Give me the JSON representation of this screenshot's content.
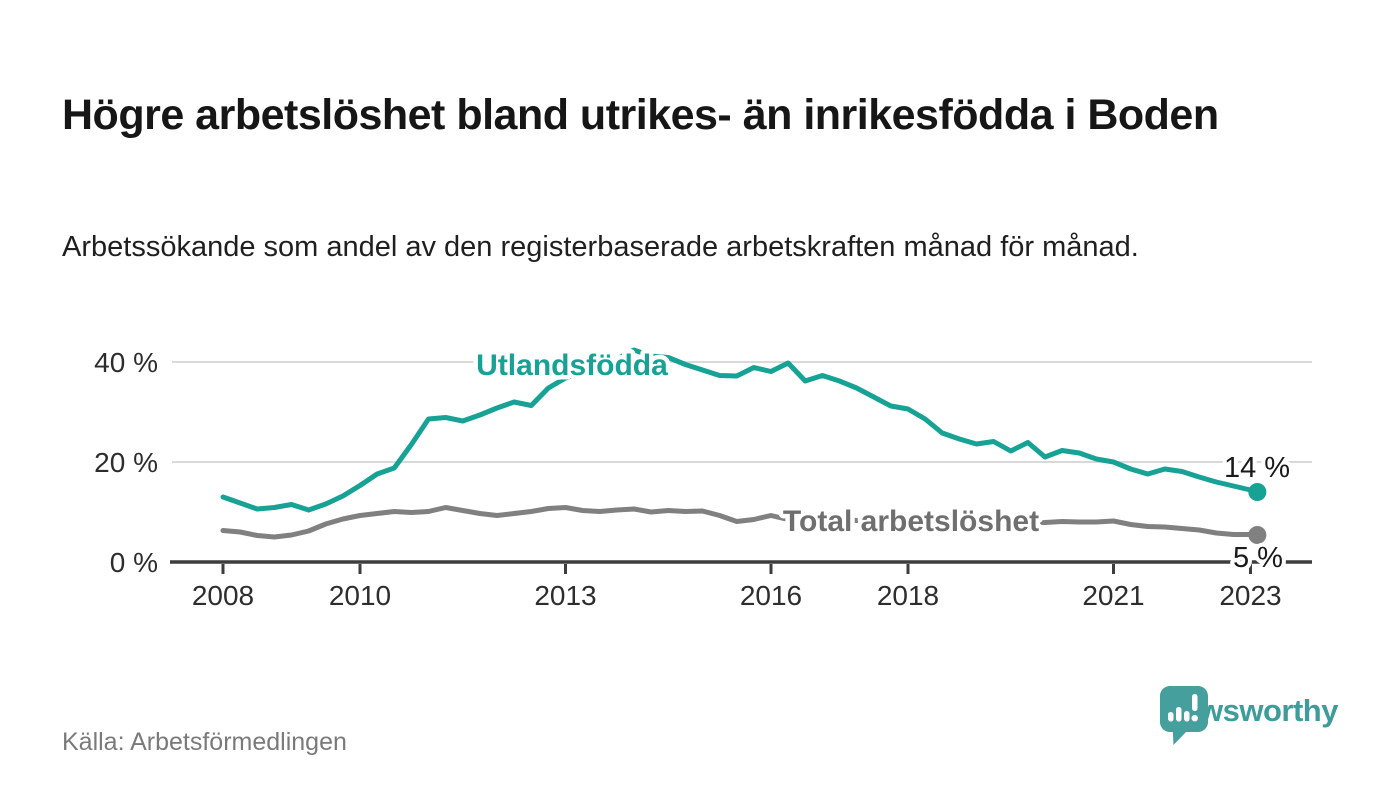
{
  "header": {
    "title": "Högre arbetslöshet bland utrikes- än inrikesfödda i Boden",
    "subtitle": "Arbetssökande som andel av den registerbaserade arbetskraften månad för månad."
  },
  "footer": {
    "source": "Källa: Arbetsförmedlingen",
    "brand": "Newsworthy"
  },
  "colors": {
    "teal": "#16a294",
    "gray": "#808080",
    "axis": "#3d3d3d",
    "gridline": "#d9d9d9",
    "brand_teal": "#3e9d9b"
  },
  "chart_data": {
    "type": "line",
    "title": "Högre arbetslöshet bland utrikes- än inrikesfödda i Boden",
    "subtitle": "Arbetssökande som andel av den registerbaserade arbetskraften månad för månad.",
    "source": "Källa: Arbetsförmedlingen",
    "y_unit": "%",
    "grid": "horizontal-only",
    "y_axis": {
      "range": [
        0,
        44
      ],
      "gridlines": [
        20,
        40
      ],
      "ticks": [
        {
          "value": 0,
          "label": "0 %"
        },
        {
          "value": 20,
          "label": "20 %"
        },
        {
          "value": 40,
          "label": "40 %"
        }
      ]
    },
    "x_axis": {
      "range": [
        2008,
        2023.4
      ],
      "ticks": [
        {
          "year": 2008,
          "label": "2008"
        },
        {
          "year": 2010,
          "label": "2010"
        },
        {
          "year": 2013,
          "label": "2013"
        },
        {
          "year": 2016,
          "label": "2016"
        },
        {
          "year": 2018,
          "label": "2018"
        },
        {
          "year": 2021,
          "label": "2021"
        },
        {
          "year": 2023,
          "label": "2023"
        }
      ]
    },
    "x": [
      2008,
      2008.25,
      2008.5,
      2008.75,
      2009,
      2009.25,
      2009.5,
      2009.75,
      2010,
      2010.25,
      2010.5,
      2010.75,
      2011,
      2011.25,
      2011.5,
      2011.75,
      2012,
      2012.25,
      2012.5,
      2012.75,
      2013,
      2013.25,
      2013.5,
      2013.75,
      2014,
      2014.25,
      2014.5,
      2014.75,
      2015,
      2015.25,
      2015.5,
      2015.75,
      2016,
      2016.25,
      2016.5,
      2016.75,
      2017,
      2017.25,
      2017.5,
      2017.75,
      2018,
      2018.25,
      2018.5,
      2018.75,
      2019,
      2019.25,
      2019.5,
      2019.75,
      2020,
      2020.25,
      2020.5,
      2020.75,
      2021,
      2021.25,
      2021.5,
      2021.75,
      2022,
      2022.25,
      2022.5,
      2022.75,
      2023,
      2023.1
    ],
    "series": [
      {
        "name": "Utlandsfödda",
        "color": "#16a294",
        "end_label": "14 %",
        "end_value": 14,
        "values": [
          13.0,
          11.8,
          10.6,
          10.9,
          11.5,
          10.4,
          11.6,
          13.2,
          15.3,
          17.6,
          18.8,
          23.5,
          28.6,
          28.9,
          28.2,
          29.4,
          30.8,
          32.0,
          31.3,
          34.8,
          36.8,
          38.0,
          39.2,
          40.6,
          42.4,
          41.2,
          40.9,
          39.5,
          38.4,
          37.3,
          37.2,
          38.9,
          38.1,
          39.8,
          36.2,
          37.3,
          36.2,
          34.8,
          33.0,
          31.2,
          30.6,
          28.6,
          25.8,
          24.6,
          23.6,
          24.1,
          22.2,
          23.9,
          21.0,
          22.3,
          21.8,
          20.6,
          20.0,
          18.6,
          17.6,
          18.6,
          18.1,
          17.0,
          16.0,
          15.2,
          14.4,
          14.0
        ]
      },
      {
        "name": "Total arbetslöshet",
        "color": "#808080",
        "end_label": "5 %",
        "end_value": 5,
        "values": [
          6.3,
          6.0,
          5.3,
          5.0,
          5.4,
          6.2,
          7.6,
          8.6,
          9.3,
          9.7,
          10.1,
          9.9,
          10.1,
          10.9,
          10.3,
          9.7,
          9.3,
          9.7,
          10.1,
          10.7,
          10.9,
          10.3,
          10.1,
          10.4,
          10.6,
          10.0,
          10.3,
          10.1,
          10.2,
          9.3,
          8.1,
          8.5,
          9.3,
          8.5,
          8.1,
          8.9,
          8.6,
          8.3,
          8.1,
          7.9,
          8.1,
          7.9,
          7.7,
          7.9,
          8.0,
          7.7,
          7.6,
          7.8,
          7.9,
          8.1,
          8.0,
          8.0,
          8.2,
          7.5,
          7.1,
          7.0,
          6.7,
          6.4,
          5.8,
          5.5,
          5.5,
          5.4
        ]
      }
    ],
    "legend_position": "inline-labels"
  }
}
